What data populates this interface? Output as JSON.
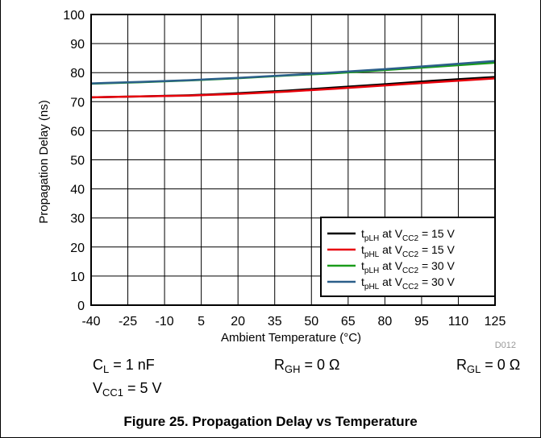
{
  "chart_data": {
    "type": "line",
    "xlabel": "Ambient Temperature (°C)",
    "ylabel": "Propagation Delay (ns)",
    "xlim": [
      -40,
      125
    ],
    "ylim": [
      0,
      100
    ],
    "xticks": [
      -40,
      -25,
      -10,
      5,
      20,
      35,
      50,
      65,
      80,
      95,
      110,
      125
    ],
    "yticks": [
      0,
      10,
      20,
      30,
      40,
      50,
      60,
      70,
      80,
      90,
      100
    ],
    "grid": true,
    "legend_position": "bottom-right",
    "figure_id": "D012",
    "series": [
      {
        "name": {
          "main": "t",
          "sub1": "pLH",
          "mid": " at V",
          "sub2": "CC2",
          "tail": " = 15 V"
        },
        "color": "#000000",
        "x": [
          -40,
          -20,
          0,
          20,
          40,
          60,
          80,
          100,
          125
        ],
        "y": [
          71.5,
          71.8,
          72.2,
          72.9,
          73.8,
          74.9,
          76.0,
          77.2,
          78.5
        ]
      },
      {
        "name": {
          "main": "t",
          "sub1": "pHL",
          "mid": " at V",
          "sub2": "CC2",
          "tail": " = 15 V"
        },
        "color": "#e8000b",
        "x": [
          -40,
          -20,
          0,
          20,
          40,
          60,
          80,
          100,
          125
        ],
        "y": [
          71.5,
          71.8,
          72.1,
          72.7,
          73.5,
          74.5,
          75.6,
          76.7,
          78.0
        ]
      },
      {
        "name": {
          "main": "t",
          "sub1": "pLH",
          "mid": " at V",
          "sub2": "CC2",
          "tail": " = 30 V"
        },
        "color": "#1a9c1a",
        "x": [
          -40,
          -20,
          0,
          20,
          40,
          60,
          80,
          100,
          125
        ],
        "y": [
          76.2,
          76.7,
          77.3,
          78.1,
          79.0,
          79.8,
          80.9,
          82.0,
          83.4
        ]
      },
      {
        "name": {
          "main": "t",
          "sub1": "pHL",
          "mid": " at V",
          "sub2": "CC2",
          "tail": " = 30 V"
        },
        "color": "#2b5f8a",
        "x": [
          -40,
          -20,
          0,
          20,
          40,
          60,
          80,
          100,
          125
        ],
        "y": [
          76.3,
          76.8,
          77.4,
          78.2,
          79.1,
          80.1,
          81.2,
          82.4,
          84.0
        ]
      }
    ]
  },
  "conditions": {
    "cl": {
      "main": "C",
      "sub": "L",
      "tail": " = 1 nF"
    },
    "rgh": {
      "main": "R",
      "sub": "GH",
      "tail": " = 0 Ω"
    },
    "rgl": {
      "main": "R",
      "sub": "GL",
      "tail": " = 0 Ω"
    },
    "vcc1": {
      "main": "V",
      "sub": "CC1",
      "tail": " = 5 V"
    }
  },
  "caption": "Figure 25. Propagation Delay vs Temperature"
}
